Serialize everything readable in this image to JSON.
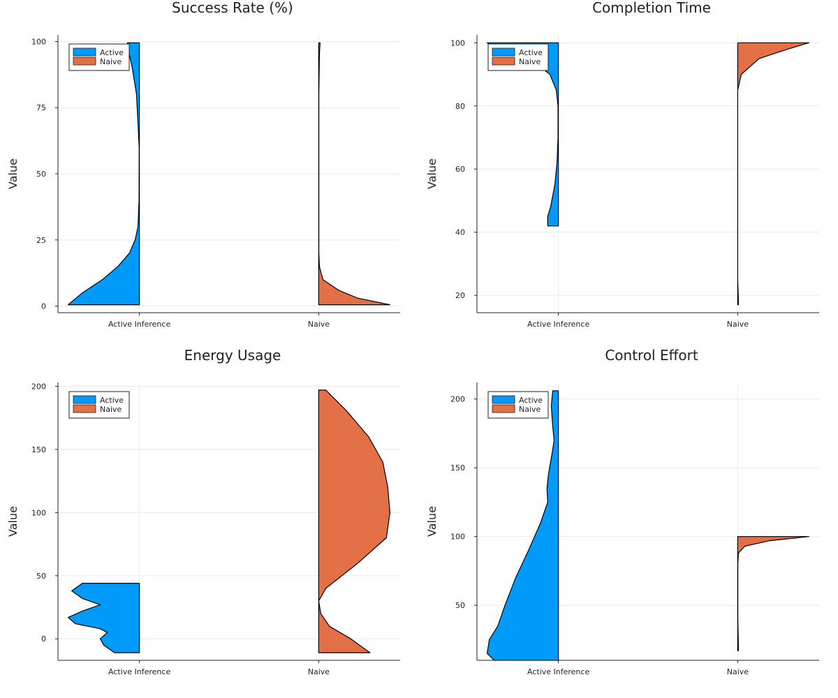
{
  "colors": {
    "active": "#009AFA",
    "naive": "#E26F46"
  },
  "legend": {
    "labels": [
      "Active",
      "Naive"
    ],
    "placement": "top-left"
  },
  "chart_data": [
    {
      "type": "violin",
      "title": "Success Rate (%)",
      "ylabel": "Value",
      "categories": [
        "Active Inference",
        "Naive"
      ],
      "ylim": [
        -2.5,
        102.5
      ],
      "yticks": [
        0,
        25,
        50,
        75,
        100
      ],
      "grid": true,
      "series": [
        {
          "name": "Active",
          "side": "left",
          "range": [
            0.5,
            99.5
          ],
          "profile": [
            [
              0.5,
              1.0
            ],
            [
              5,
              0.8
            ],
            [
              10,
              0.52
            ],
            [
              15,
              0.3
            ],
            [
              20,
              0.14
            ],
            [
              25,
              0.06
            ],
            [
              30,
              0.02
            ],
            [
              40,
              0.005
            ],
            [
              60,
              0.003
            ],
            [
              80,
              0.04
            ],
            [
              90,
              0.1
            ],
            [
              95,
              0.14
            ],
            [
              99.5,
              0.17
            ]
          ]
        },
        {
          "name": "Naive",
          "side": "right",
          "range": [
            0.5,
            99.5
          ],
          "profile": [
            [
              0.5,
              1.0
            ],
            [
              3,
              0.55
            ],
            [
              6,
              0.28
            ],
            [
              10,
              0.06
            ],
            [
              15,
              0.01
            ],
            [
              20,
              0.002
            ],
            [
              80,
              0.002
            ],
            [
              95,
              0.01
            ],
            [
              99.5,
              0.02
            ]
          ]
        }
      ]
    },
    {
      "type": "violin",
      "title": "Completion Time",
      "ylabel": "Value",
      "categories": [
        "Active Inference",
        "Naive"
      ],
      "ylim": [
        14.5,
        102.5
      ],
      "yticks": [
        20,
        40,
        60,
        80,
        100
      ],
      "grid": true,
      "series": [
        {
          "name": "Active",
          "side": "left",
          "range": [
            42,
            100
          ],
          "profile": [
            [
              42,
              0.15
            ],
            [
              45,
              0.15
            ],
            [
              48,
              0.11
            ],
            [
              55,
              0.05
            ],
            [
              62,
              0.02
            ],
            [
              70,
              0.005
            ],
            [
              80,
              0.005
            ],
            [
              85,
              0.03
            ],
            [
              90,
              0.12
            ],
            [
              95,
              0.4
            ],
            [
              98,
              0.8
            ],
            [
              100,
              1.0
            ]
          ]
        },
        {
          "name": "Naive",
          "side": "right",
          "range": [
            17,
            100
          ],
          "profile": [
            [
              17,
              0.01
            ],
            [
              20,
              0.008
            ],
            [
              25,
              0.0
            ],
            [
              85,
              0.0
            ],
            [
              90,
              0.05
            ],
            [
              95,
              0.3
            ],
            [
              98,
              0.7
            ],
            [
              100,
              1.0
            ]
          ]
        }
      ]
    },
    {
      "type": "violin",
      "title": "Energy Usage",
      "ylabel": "Value",
      "categories": [
        "Active Inference",
        "Naive"
      ],
      "ylim": [
        -17,
        203
      ],
      "yticks": [
        0,
        50,
        100,
        150,
        200
      ],
      "grid": true,
      "series": [
        {
          "name": "Active",
          "side": "left",
          "range": [
            -11,
            44
          ],
          "profile": [
            [
              -11,
              0.35
            ],
            [
              -5,
              0.5
            ],
            [
              0,
              0.55
            ],
            [
              5,
              0.45
            ],
            [
              8,
              0.55
            ],
            [
              12,
              0.9
            ],
            [
              17,
              1.0
            ],
            [
              22,
              0.8
            ],
            [
              27,
              0.55
            ],
            [
              32,
              0.8
            ],
            [
              38,
              0.95
            ],
            [
              42,
              0.85
            ],
            [
              44,
              0.8
            ]
          ]
        },
        {
          "name": "Naive",
          "side": "right",
          "range": [
            -11,
            197
          ],
          "profile": [
            [
              -11,
              0.72
            ],
            [
              0,
              0.45
            ],
            [
              10,
              0.15
            ],
            [
              20,
              0.03
            ],
            [
              30,
              0.0
            ],
            [
              40,
              0.1
            ],
            [
              60,
              0.55
            ],
            [
              80,
              0.95
            ],
            [
              100,
              1.0
            ],
            [
              120,
              0.97
            ],
            [
              140,
              0.9
            ],
            [
              160,
              0.7
            ],
            [
              180,
              0.4
            ],
            [
              197,
              0.1
            ]
          ]
        }
      ]
    },
    {
      "type": "violin",
      "title": "Control Effort",
      "ylabel": "Value",
      "categories": [
        "Active Inference",
        "Naive"
      ],
      "ylim": [
        10,
        212
      ],
      "yticks": [
        50,
        100,
        150,
        200
      ],
      "grid": true,
      "series": [
        {
          "name": "Active",
          "side": "left",
          "range": [
            10,
            206
          ],
          "profile": [
            [
              10,
              0.9
            ],
            [
              15,
              1.0
            ],
            [
              25,
              0.97
            ],
            [
              35,
              0.85
            ],
            [
              50,
              0.75
            ],
            [
              70,
              0.6
            ],
            [
              90,
              0.42
            ],
            [
              110,
              0.25
            ],
            [
              125,
              0.15
            ],
            [
              135,
              0.16
            ],
            [
              145,
              0.14
            ],
            [
              160,
              0.09
            ],
            [
              170,
              0.06
            ],
            [
              180,
              0.08
            ],
            [
              195,
              0.1
            ],
            [
              206,
              0.08
            ]
          ]
        },
        {
          "name": "Naive",
          "side": "right",
          "range": [
            17,
            100
          ],
          "profile": [
            [
              17,
              0.01
            ],
            [
              25,
              0.008
            ],
            [
              40,
              0.002
            ],
            [
              80,
              0.002
            ],
            [
              88,
              0.01
            ],
            [
              93,
              0.1
            ],
            [
              97,
              0.45
            ],
            [
              100,
              1.0
            ]
          ]
        }
      ]
    }
  ]
}
